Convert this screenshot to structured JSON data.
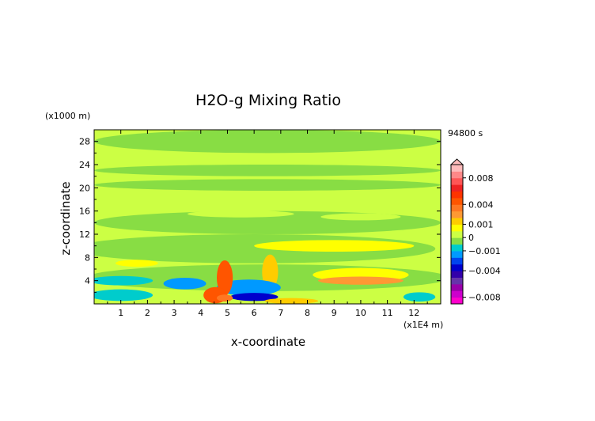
{
  "chart_data": {
    "type": "heatmap",
    "title": "H2O-g Mixing Ratio",
    "time_label": "94800 s",
    "xlabel": "x-coordinate",
    "ylabel": "z-coordinate",
    "x_unit": "(x1E4 m)",
    "y_unit": "(x1000 m)",
    "xlim": [
      0,
      13
    ],
    "ylim": [
      0,
      30
    ],
    "x_ticks": [
      1,
      2,
      3,
      4,
      5,
      6,
      7,
      8,
      9,
      10,
      11,
      12
    ],
    "y_ticks": [
      4,
      8,
      12,
      16,
      20,
      24,
      28
    ],
    "colorbar": {
      "levels": [
        -0.009,
        -0.008,
        -0.007,
        -0.006,
        -0.005,
        -0.004,
        -0.003,
        -0.002,
        -0.001,
        -0.0005,
        0,
        0.0005,
        0.001,
        0.002,
        0.003,
        0.004,
        0.005,
        0.006,
        0.007,
        0.008,
        0.009,
        0.01
      ],
      "colors": [
        "#ff00cc",
        "#cc00cc",
        "#9900aa",
        "#6633aa",
        "#3300aa",
        "#0000cc",
        "#0044ee",
        "#0099ff",
        "#00cccc",
        "#88dd44",
        "#ccff44",
        "#ffff00",
        "#ffcc00",
        "#ff9933",
        "#ff7722",
        "#ff5500",
        "#ff3300",
        "#ee2222",
        "#ff5555",
        "#ff8888",
        "#ffbbbb"
      ],
      "tick_labels": [
        {
          "value": 0.008,
          "label": "0.008"
        },
        {
          "value": 0.004,
          "label": "0.004"
        },
        {
          "value": 0.001,
          "label": "0.001"
        },
        {
          "value": 0,
          "label": "0"
        },
        {
          "value": -0.001,
          "label": "−0.001"
        },
        {
          "value": -0.004,
          "label": "−0.004"
        },
        {
          "value": -0.008,
          "label": "−0.008"
        }
      ]
    },
    "background_value": 0.0002,
    "regions": [
      {
        "value": -0.0002,
        "x": 6.5,
        "y": 28.0,
        "rx": 6.5,
        "ry": 2.0
      },
      {
        "value": -0.0002,
        "x": 6.5,
        "y": 23.0,
        "rx": 6.5,
        "ry": 1.0
      },
      {
        "value": -0.0002,
        "x": 6.5,
        "y": 20.5,
        "rx": 6.5,
        "ry": 1.0
      },
      {
        "value": -0.0002,
        "x": 6.5,
        "y": 14.0,
        "rx": 6.5,
        "ry": 2.0
      },
      {
        "value": -0.0002,
        "x": 6.0,
        "y": 9.5,
        "rx": 6.8,
        "ry": 2.5
      },
      {
        "value": 0.0002,
        "x": 3.5,
        "y": 19.0,
        "rx": 1.8,
        "ry": 0.5
      },
      {
        "value": 0.0002,
        "x": 9.0,
        "y": 19.0,
        "rx": 2.0,
        "ry": 0.5
      },
      {
        "value": 0.0002,
        "x": 5.5,
        "y": 15.5,
        "rx": 2.0,
        "ry": 0.6
      },
      {
        "value": 0.0002,
        "x": 10.0,
        "y": 15.0,
        "rx": 1.5,
        "ry": 0.6
      },
      {
        "value": -0.0002,
        "x": 6.5,
        "y": 4.5,
        "rx": 6.8,
        "ry": 2.3
      },
      {
        "value": 0.0007,
        "x": 9.0,
        "y": 10.0,
        "rx": 3.0,
        "ry": 1.0
      },
      {
        "value": 0.0007,
        "x": 1.6,
        "y": 7.0,
        "rx": 0.8,
        "ry": 0.6
      },
      {
        "value": 0.0007,
        "x": 10.0,
        "y": 5.0,
        "rx": 1.8,
        "ry": 1.2
      },
      {
        "value": 0.0025,
        "x": 10.0,
        "y": 4.0,
        "rx": 1.6,
        "ry": 0.7
      },
      {
        "value": 0.0015,
        "x": 6.6,
        "y": 5.5,
        "rx": 0.3,
        "ry": 3.0
      },
      {
        "value": -0.0007,
        "x": 1.0,
        "y": 4.0,
        "rx": 1.2,
        "ry": 0.8
      },
      {
        "value": -0.0007,
        "x": 1.0,
        "y": 1.5,
        "rx": 1.2,
        "ry": 1.0
      },
      {
        "value": -0.0015,
        "x": 3.4,
        "y": 3.5,
        "rx": 0.8,
        "ry": 1.0
      },
      {
        "value": -0.0015,
        "x": 5.8,
        "y": 2.8,
        "rx": 1.2,
        "ry": 1.4
      },
      {
        "value": -0.0035,
        "x": 6.0,
        "y": 1.2,
        "rx": 0.9,
        "ry": 0.7
      },
      {
        "value": -0.0007,
        "x": 12.2,
        "y": 1.2,
        "rx": 0.6,
        "ry": 0.8
      },
      {
        "value": 0.0045,
        "x": 4.9,
        "y": 4.5,
        "rx": 0.3,
        "ry": 3.0
      },
      {
        "value": 0.0045,
        "x": 4.55,
        "y": 1.5,
        "rx": 0.45,
        "ry": 1.4
      },
      {
        "value": 0.003,
        "x": 4.9,
        "y": 1.0,
        "rx": 0.3,
        "ry": 0.6
      },
      {
        "value": 0.0015,
        "x": 7.4,
        "y": 0.5,
        "rx": 1.0,
        "ry": 0.5
      }
    ]
  }
}
